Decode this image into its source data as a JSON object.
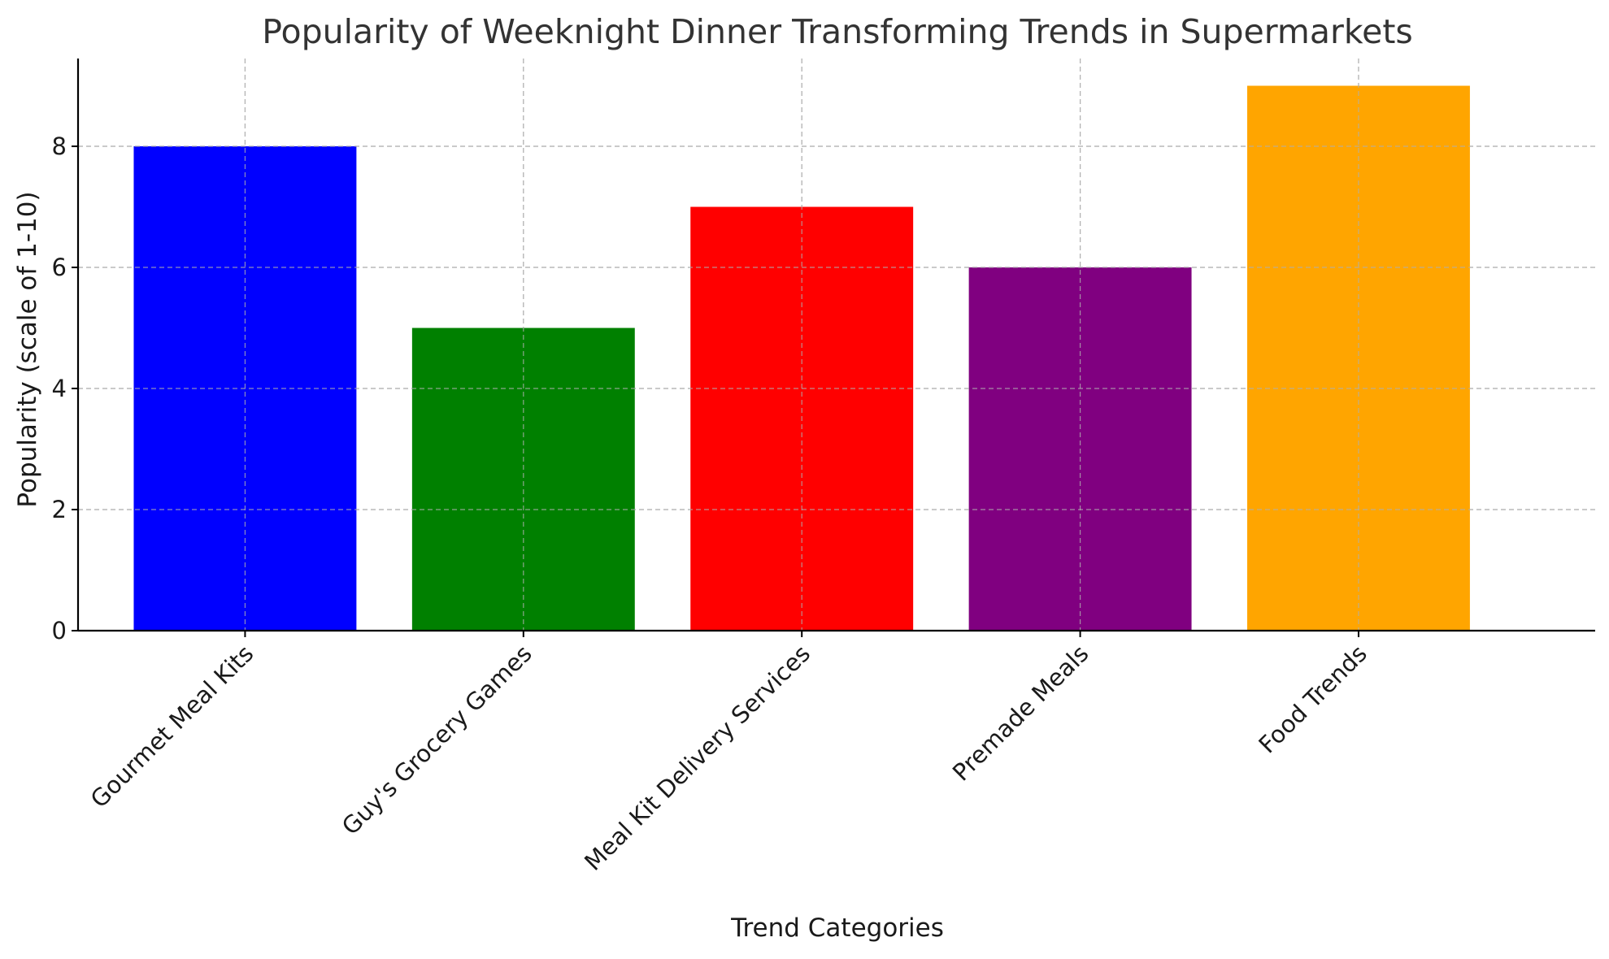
{
  "chart_data": {
    "type": "bar",
    "title": "Popularity of Weeknight Dinner Transforming Trends in Supermarkets",
    "xlabel": "Trend Categories",
    "ylabel": "Popularity (scale of 1-10)",
    "categories": [
      "Gourmet Meal Kits",
      "Guy's Grocery Games",
      "Meal Kit Delivery Services",
      "Premade Meals",
      "Food Trends"
    ],
    "values": [
      8,
      5,
      7,
      6,
      9
    ],
    "colors": [
      "#0000ff",
      "#008000",
      "#ff0000",
      "#800080",
      "#ffa500"
    ],
    "ylim": [
      0,
      9.45
    ],
    "yticks": [
      0,
      2,
      4,
      6,
      8
    ],
    "grid": true,
    "legend": "none"
  }
}
